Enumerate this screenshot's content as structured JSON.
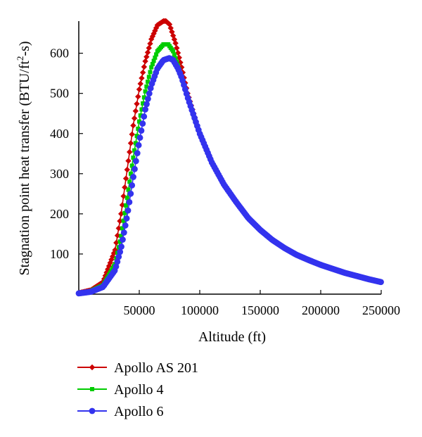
{
  "chart_data": {
    "type": "line",
    "xlabel": "Altitude (ft)",
    "ylabel_prefix": "Stagnation point heat transfer (BTU/ft",
    "ylabel_sup": "2",
    "ylabel_suffix": "-s)",
    "xlim": [
      0,
      250000
    ],
    "ylim": [
      0,
      680
    ],
    "xticks": [
      50000,
      100000,
      150000,
      200000,
      250000
    ],
    "xtick_labels": [
      "50000",
      "100000",
      "150000",
      "200000",
      "250000"
    ],
    "yticks": [
      100,
      200,
      300,
      400,
      500,
      600
    ],
    "ytick_labels": [
      "100",
      "200",
      "300",
      "400",
      "500",
      "600"
    ],
    "grid": false,
    "legend_position": "bottom-left",
    "series": [
      {
        "name": "Apollo AS 201",
        "color": "#cc0000",
        "marker": "diamond",
        "x": [
          0,
          10000,
          20000,
          30000,
          35000,
          40000,
          45000,
          50000,
          55000,
          60000,
          65000,
          70000,
          72000,
          75000,
          80000,
          85000,
          90000,
          100000,
          110000,
          120000,
          130000,
          140000,
          150000,
          160000,
          170000,
          180000,
          190000,
          200000,
          210000,
          220000,
          230000,
          240000,
          250000
        ],
        "y": [
          3,
          10,
          30,
          110,
          200,
          310,
          420,
          510,
          580,
          635,
          670,
          680,
          680,
          672,
          625,
          565,
          500,
          400,
          328,
          273,
          230,
          190,
          160,
          135,
          115,
          98,
          85,
          73,
          63,
          53,
          45,
          37,
          30
        ]
      },
      {
        "name": "Apollo 4",
        "color": "#00cc00",
        "marker": "square",
        "x": [
          0,
          10000,
          20000,
          30000,
          35000,
          40000,
          45000,
          50000,
          55000,
          60000,
          65000,
          70000,
          74000,
          78000,
          82000,
          85000,
          90000,
          100000,
          110000,
          120000,
          130000,
          140000,
          150000,
          160000,
          170000,
          180000,
          190000,
          200000,
          210000,
          220000,
          230000,
          240000,
          250000
        ],
        "y": [
          2,
          8,
          22,
          75,
          145,
          240,
          340,
          430,
          505,
          565,
          605,
          622,
          622,
          605,
          570,
          540,
          490,
          400,
          328,
          273,
          230,
          190,
          160,
          135,
          115,
          98,
          85,
          73,
          63,
          53,
          45,
          37,
          30
        ]
      },
      {
        "name": "Apollo 6",
        "color": "#3333ee",
        "marker": "circle",
        "x": [
          0,
          10000,
          20000,
          30000,
          35000,
          40000,
          45000,
          50000,
          55000,
          60000,
          65000,
          70000,
          75000,
          78000,
          82000,
          85000,
          90000,
          100000,
          110000,
          120000,
          130000,
          140000,
          150000,
          160000,
          170000,
          180000,
          190000,
          200000,
          210000,
          220000,
          230000,
          240000,
          250000
        ],
        "y": [
          2,
          6,
          18,
          60,
          115,
          195,
          290,
          380,
          460,
          520,
          562,
          583,
          588,
          583,
          562,
          540,
          490,
          400,
          328,
          273,
          230,
          190,
          160,
          135,
          115,
          98,
          85,
          73,
          63,
          53,
          45,
          37,
          30
        ]
      }
    ]
  }
}
